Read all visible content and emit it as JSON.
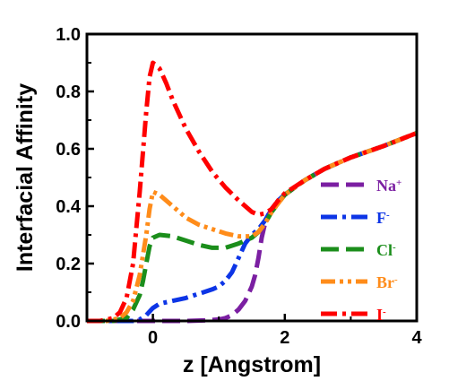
{
  "chart_data": {
    "type": "line",
    "xlabel": "z [Angstrom]",
    "ylabel": "Interfacial Affinity",
    "xlim": [
      -1,
      4
    ],
    "ylim": [
      0,
      1.0
    ],
    "xticks": [
      0,
      2,
      4
    ],
    "yticks": [
      0.0,
      0.2,
      0.4,
      0.6,
      0.8,
      1.0
    ],
    "xtick_labels": [
      "0",
      "2",
      "4"
    ],
    "ytick_labels": [
      "0.0",
      "0.2",
      "0.4",
      "0.6",
      "0.8",
      "1.0"
    ],
    "legend_position": "right",
    "grid": false,
    "series": [
      {
        "name": "Na",
        "sup": "+",
        "color": "#7b1fa2",
        "style": "dash",
        "x": [
          -1.0,
          -0.5,
          0,
          0.5,
          0.8,
          1.0,
          1.1,
          1.2,
          1.3,
          1.4,
          1.5,
          1.55,
          1.6,
          1.65,
          1.7,
          1.75,
          1.8,
          1.9,
          2.0,
          2.3,
          2.6,
          3.0,
          3.5,
          4.0
        ],
        "y": [
          0,
          0,
          0,
          0,
          0.002,
          0.005,
          0.01,
          0.02,
          0.04,
          0.07,
          0.12,
          0.16,
          0.22,
          0.29,
          0.34,
          0.37,
          0.39,
          0.42,
          0.44,
          0.49,
          0.53,
          0.57,
          0.61,
          0.655
        ]
      },
      {
        "name": "F",
        "sup": "-",
        "color": "#0d35e6",
        "style": "dashdot",
        "x": [
          -1.0,
          -0.5,
          -0.3,
          -0.2,
          -0.1,
          0,
          0.1,
          0.3,
          0.5,
          0.7,
          0.9,
          1.0,
          1.1,
          1.2,
          1.3,
          1.4,
          1.5,
          1.6,
          1.7,
          1.8,
          1.9,
          2.0,
          2.3,
          2.6,
          3.0,
          3.5,
          4.0
        ],
        "y": [
          0,
          0,
          0.0,
          0.005,
          0.02,
          0.045,
          0.06,
          0.07,
          0.08,
          0.095,
          0.11,
          0.12,
          0.14,
          0.17,
          0.22,
          0.27,
          0.3,
          0.32,
          0.35,
          0.39,
          0.42,
          0.44,
          0.49,
          0.53,
          0.57,
          0.61,
          0.655
        ]
      },
      {
        "name": "Cl",
        "sup": "-",
        "color": "#1b8e1b",
        "style": "dash",
        "x": [
          -1.0,
          -0.6,
          -0.4,
          -0.3,
          -0.2,
          -0.15,
          -0.1,
          -0.05,
          0,
          0.1,
          0.3,
          0.5,
          0.7,
          0.9,
          1.1,
          1.3,
          1.5,
          1.6,
          1.7,
          1.8,
          1.9,
          2.0,
          2.3,
          2.6,
          3.0,
          3.5,
          4.0
        ],
        "y": [
          0,
          0,
          0.01,
          0.04,
          0.09,
          0.14,
          0.2,
          0.26,
          0.29,
          0.3,
          0.295,
          0.28,
          0.265,
          0.255,
          0.255,
          0.27,
          0.29,
          0.31,
          0.34,
          0.38,
          0.41,
          0.44,
          0.49,
          0.53,
          0.57,
          0.61,
          0.655
        ]
      },
      {
        "name": "Br",
        "sup": "-",
        "color": "#ff8c1a",
        "style": "dashdotdot",
        "x": [
          -1.0,
          -0.7,
          -0.5,
          -0.4,
          -0.3,
          -0.2,
          -0.1,
          -0.05,
          0,
          0.1,
          0.3,
          0.5,
          0.7,
          0.9,
          1.1,
          1.3,
          1.5,
          1.6,
          1.7,
          1.8,
          1.9,
          2.0,
          2.3,
          2.6,
          3.0,
          3.5,
          4.0
        ],
        "y": [
          0,
          0,
          0.01,
          0.03,
          0.07,
          0.16,
          0.3,
          0.39,
          0.45,
          0.44,
          0.4,
          0.36,
          0.335,
          0.32,
          0.305,
          0.295,
          0.295,
          0.31,
          0.34,
          0.38,
          0.41,
          0.44,
          0.49,
          0.53,
          0.57,
          0.61,
          0.655
        ]
      },
      {
        "name": "I",
        "sup": "-",
        "color": "#ff0000",
        "style": "dashdot",
        "x": [
          -1.0,
          -0.8,
          -0.6,
          -0.5,
          -0.4,
          -0.3,
          -0.2,
          -0.1,
          -0.05,
          0,
          0.1,
          0.2,
          0.3,
          0.5,
          0.7,
          0.9,
          1.1,
          1.3,
          1.5,
          1.6,
          1.7,
          1.8,
          1.9,
          2.0,
          2.3,
          2.6,
          3.0,
          3.5,
          4.0
        ],
        "y": [
          0,
          0,
          0.01,
          0.03,
          0.08,
          0.2,
          0.45,
          0.73,
          0.85,
          0.9,
          0.88,
          0.83,
          0.77,
          0.67,
          0.59,
          0.52,
          0.465,
          0.42,
          0.38,
          0.37,
          0.375,
          0.39,
          0.42,
          0.445,
          0.49,
          0.53,
          0.57,
          0.61,
          0.655
        ]
      }
    ]
  }
}
